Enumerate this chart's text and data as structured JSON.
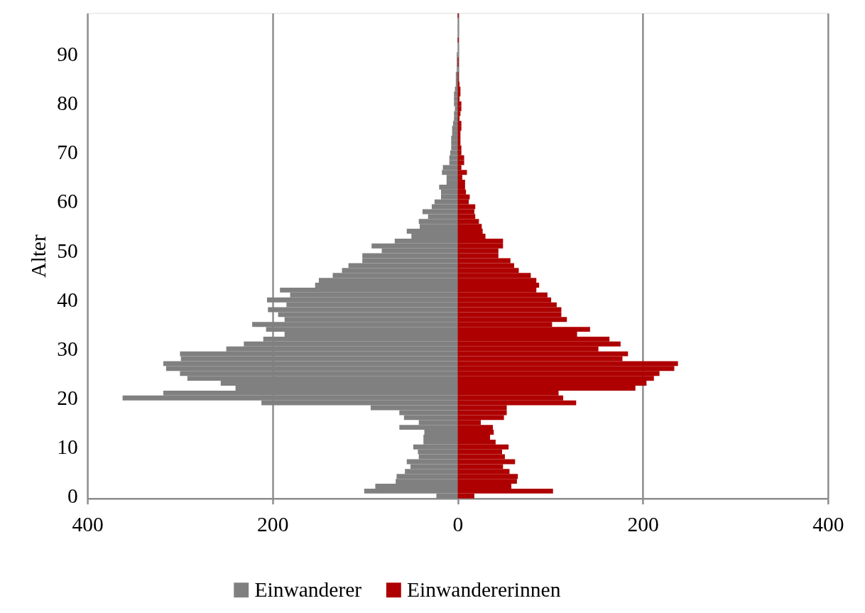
{
  "chart_data": {
    "type": "bar",
    "orientation": "horizontal",
    "ylabel": "Alter",
    "x": [
      0,
      1,
      2,
      3,
      4,
      5,
      6,
      7,
      8,
      9,
      10,
      11,
      12,
      13,
      14,
      15,
      16,
      17,
      18,
      19,
      20,
      21,
      22,
      23,
      24,
      25,
      26,
      27,
      28,
      29,
      30,
      31,
      32,
      33,
      34,
      35,
      36,
      37,
      38,
      39,
      40,
      41,
      42,
      43,
      44,
      45,
      46,
      47,
      48,
      49,
      50,
      51,
      52,
      53,
      54,
      55,
      56,
      57,
      58,
      59,
      60,
      61,
      62,
      63,
      64,
      65,
      66,
      67,
      68,
      69,
      70,
      71,
      72,
      73,
      74,
      75,
      76,
      77,
      78,
      79,
      80,
      81,
      82,
      83,
      84,
      85,
      86,
      87,
      88,
      89,
      90,
      91,
      92,
      93,
      94,
      95,
      96,
      97,
      98
    ],
    "series": [
      {
        "name": "Einwanderer",
        "color": "#808080",
        "values": [
          -23,
          -101,
          -89,
          -67,
          -66,
          -57,
          -51,
          -55,
          -42,
          -43,
          -48,
          -37,
          -37,
          -36,
          -63,
          -42,
          -58,
          -63,
          -94,
          -212,
          -362,
          -318,
          -240,
          -256,
          -292,
          -300,
          -315,
          -318,
          -299,
          -300,
          -250,
          -231,
          -210,
          -187,
          -207,
          -222,
          -187,
          -194,
          -205,
          -185,
          -206,
          -181,
          -192,
          -154,
          -150,
          -135,
          -125,
          -118,
          -103,
          -103,
          -82,
          -93,
          -68,
          -50,
          -55,
          -41,
          -42,
          -32,
          -38,
          -28,
          -25,
          -18,
          -18,
          -20,
          -12,
          -12,
          -17,
          -16,
          -9,
          -9,
          -8,
          -7,
          -7,
          -7,
          -6,
          -6,
          -5,
          -4,
          -4,
          -3,
          -4,
          -4,
          -4,
          -3,
          -2,
          -2,
          -2,
          -1,
          -1,
          -1,
          -1,
          null,
          null,
          null,
          null,
          null,
          null,
          null,
          null
        ]
      },
      {
        "name": "Einwandererinnen",
        "color": "#ae0000",
        "values": [
          18,
          103,
          58,
          64,
          65,
          56,
          49,
          62,
          51,
          48,
          55,
          41,
          35,
          39,
          38,
          25,
          50,
          53,
          53,
          128,
          114,
          109,
          192,
          204,
          212,
          218,
          234,
          238,
          178,
          184,
          152,
          176,
          164,
          129,
          143,
          102,
          118,
          112,
          112,
          107,
          101,
          97,
          85,
          88,
          85,
          79,
          66,
          61,
          57,
          44,
          44,
          49,
          49,
          30,
          27,
          26,
          23,
          19,
          18,
          19,
          12,
          13,
          9,
          8,
          8,
          5,
          10,
          4,
          7,
          7,
          4,
          4,
          3,
          3,
          3,
          4,
          4,
          2,
          3,
          4,
          4,
          2,
          3,
          3,
          2,
          1,
          1,
          null,
          1,
          1,
          null,
          null,
          null,
          1,
          null,
          null,
          null,
          null,
          1
        ]
      }
    ],
    "xlim": [
      -400,
      400
    ],
    "xticks": [
      {
        "value": -400,
        "label": "400"
      },
      {
        "value": -200,
        "label": "200"
      },
      0,
      200,
      400
    ],
    "ylim": [
      -0.5,
      98.5
    ],
    "yticks": [
      0,
      10,
      20,
      30,
      40,
      50,
      60,
      70,
      80,
      90
    ],
    "grid": "x",
    "legend": "bottom",
    "stacked": true
  }
}
